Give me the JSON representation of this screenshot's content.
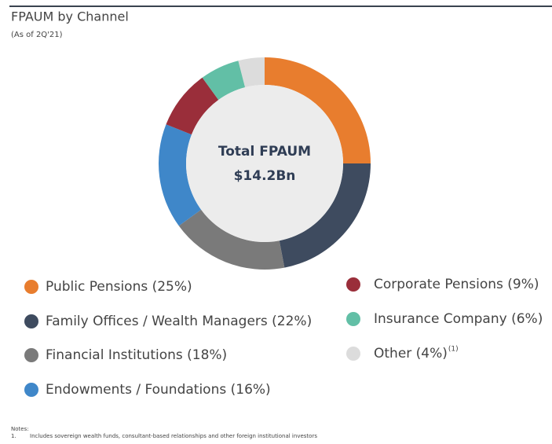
{
  "chart_data": {
    "type": "pie",
    "title": "FPAUM by Channel",
    "subtitle": "(As of 2Q'21)",
    "center_text": [
      "Total FPAUM",
      "$14.2Bn"
    ],
    "categories": [
      "Public Pensions (25%)",
      "Family Offices / Wealth Managers (22%)",
      "Financial Institutions (18%)",
      "Endowments / Foundations (16%)",
      "Corporate Pensions (9%)",
      "Insurance Company (6%)",
      "Other (4%)"
    ],
    "superscripts": [
      null,
      null,
      null,
      null,
      null,
      null,
      "(1)"
    ],
    "values": [
      25,
      22,
      18,
      16,
      9,
      6,
      4
    ],
    "colors": [
      "#e87d2e",
      "#3e4b5f",
      "#7a7a7a",
      "#3f87c9",
      "#9a2e3a",
      "#62bfa6",
      "#dcdcdc"
    ],
    "notes": {
      "heading": "Notes:",
      "items": [
        {
          "number": "1.",
          "text": "Includes sovereign wealth funds, consultant-based relationships and other foreign institutional investors"
        }
      ]
    }
  }
}
